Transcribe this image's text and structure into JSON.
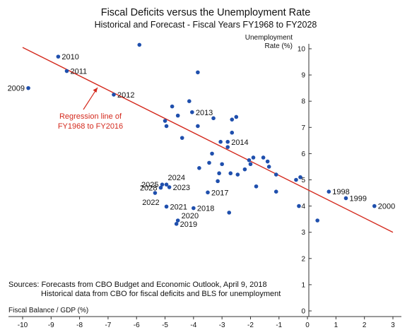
{
  "chart_data": {
    "type": "scatter",
    "title": "Fiscal Deficits versus the Unemployment Rate",
    "subtitle": "Historical and Forecast - Fiscal Years FY1968 to FY2028",
    "xlabel": "Fiscal Balance / GDP (%)",
    "ylabel": "Unemployment Rate (%)",
    "ylabel_lines": [
      "Unemployment",
      "Rate (%)"
    ],
    "xlim": [
      -10,
      3
    ],
    "ylim": [
      0,
      10
    ],
    "x_ticks": [
      -10,
      -9,
      -8,
      -7,
      -6,
      -5,
      -4,
      -3,
      -2,
      -1,
      0,
      1,
      2,
      3
    ],
    "y_ticks": [
      0,
      1,
      2,
      3,
      4,
      5,
      6,
      7,
      8,
      9,
      10
    ],
    "grid": false,
    "colors": {
      "points": "#1f4fad",
      "regression": "#d42a1e",
      "text": "#111111"
    },
    "regression": {
      "label_lines": [
        "Regression line of",
        "FY1968 to FY2016"
      ],
      "x": [
        -10,
        3
      ],
      "y": [
        10.05,
        3.0
      ]
    },
    "labeled_points": [
      {
        "label": "2010",
        "x": -8.75,
        "y": 9.7,
        "label_pos": "right"
      },
      {
        "label": "2011",
        "x": -8.45,
        "y": 9.15,
        "label_pos": "right"
      },
      {
        "label": "2009",
        "x": -9.8,
        "y": 8.5,
        "label_pos": "left"
      },
      {
        "label": "2012",
        "x": -6.8,
        "y": 8.25,
        "label_pos": "right"
      },
      {
        "label": "2013",
        "x": -4.05,
        "y": 7.58,
        "label_pos": "right"
      },
      {
        "label": "2014",
        "x": -2.8,
        "y": 6.25,
        "label_pos": "right-up"
      },
      {
        "label": "2017",
        "x": -3.5,
        "y": 4.52,
        "label_pos": "right"
      },
      {
        "label": "2024",
        "x": -4.95,
        "y": 4.82,
        "label_pos": "above"
      },
      {
        "label": "2025",
        "x": -5.1,
        "y": 4.82,
        "label_pos": "left"
      },
      {
        "label": "2028",
        "x": -5.15,
        "y": 4.7,
        "label_pos": "left"
      },
      {
        "label": "2023",
        "x": -4.85,
        "y": 4.72,
        "label_pos": "right"
      },
      {
        "label": "2022",
        "x": -5.35,
        "y": 4.5,
        "label_pos": "below"
      },
      {
        "label": "2021",
        "x": -4.95,
        "y": 3.98,
        "label_pos": "right"
      },
      {
        "label": "2018",
        "x": -4.0,
        "y": 3.92,
        "label_pos": "right"
      },
      {
        "label": "2020",
        "x": -4.55,
        "y": 3.45,
        "label_pos": "right-up"
      },
      {
        "label": "2019",
        "x": -4.6,
        "y": 3.32,
        "label_pos": "right"
      },
      {
        "label": "1998",
        "x": 0.75,
        "y": 4.55,
        "label_pos": "right"
      },
      {
        "label": "1999",
        "x": 1.35,
        "y": 4.3,
        "label_pos": "right"
      },
      {
        "label": "2000",
        "x": 2.35,
        "y": 4.0,
        "label_pos": "right"
      }
    ],
    "points": [
      {
        "x": -5.9,
        "y": 10.15
      },
      {
        "x": -3.85,
        "y": 9.1
      },
      {
        "x": -4.15,
        "y": 8.0
      },
      {
        "x": -4.75,
        "y": 7.8
      },
      {
        "x": -4.55,
        "y": 7.45
      },
      {
        "x": -5.0,
        "y": 7.25
      },
      {
        "x": -4.95,
        "y": 7.05
      },
      {
        "x": -3.85,
        "y": 7.05
      },
      {
        "x": -3.3,
        "y": 7.35
      },
      {
        "x": -2.65,
        "y": 7.3
      },
      {
        "x": -2.5,
        "y": 7.4
      },
      {
        "x": -2.65,
        "y": 6.8
      },
      {
        "x": -4.4,
        "y": 6.6
      },
      {
        "x": -3.05,
        "y": 6.45
      },
      {
        "x": -2.8,
        "y": 6.45
      },
      {
        "x": -3.35,
        "y": 6.0
      },
      {
        "x": -2.05,
        "y": 5.75
      },
      {
        "x": -1.9,
        "y": 5.85
      },
      {
        "x": -1.55,
        "y": 5.85
      },
      {
        "x": -1.4,
        "y": 5.7
      },
      {
        "x": -1.1,
        "y": 5.2
      },
      {
        "x": -2.0,
        "y": 5.6
      },
      {
        "x": -2.2,
        "y": 5.4
      },
      {
        "x": -1.35,
        "y": 5.5
      },
      {
        "x": -3.8,
        "y": 5.45
      },
      {
        "x": -3.45,
        "y": 5.65
      },
      {
        "x": -3.0,
        "y": 5.6
      },
      {
        "x": -3.1,
        "y": 5.25
      },
      {
        "x": -2.7,
        "y": 5.25
      },
      {
        "x": -2.45,
        "y": 5.2
      },
      {
        "x": -3.15,
        "y": 4.95
      },
      {
        "x": -1.8,
        "y": 4.75
      },
      {
        "x": -1.1,
        "y": 4.55
      },
      {
        "x": -0.4,
        "y": 5.0
      },
      {
        "x": -0.25,
        "y": 5.1
      },
      {
        "x": -0.3,
        "y": 4.0
      },
      {
        "x": -2.75,
        "y": 3.75
      },
      {
        "x": 0.35,
        "y": 3.45
      }
    ],
    "sources_lines": [
      "Sources:  Forecasts from CBO Budget and Economic Outlook, April 9, 2018",
      "Historical data from CBO for fiscal deficits and BLS for unemployment"
    ]
  }
}
